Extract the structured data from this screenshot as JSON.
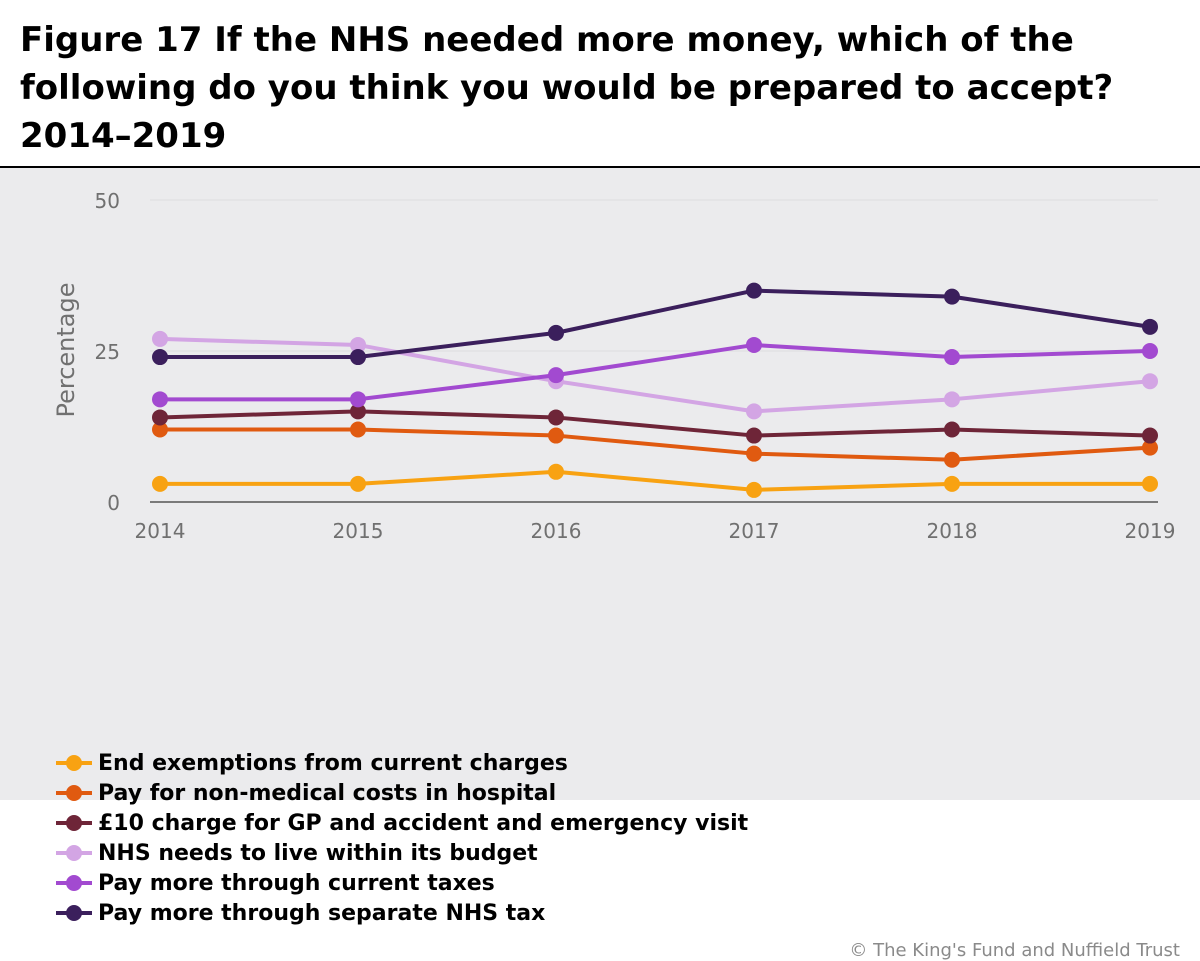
{
  "figure": {
    "title": "Figure 17 If the NHS needed more money, which of the following do you think you would be prepared to accept? 2014–2019",
    "credit": "© The King's Fund and Nuffield Trust"
  },
  "chart_data": {
    "type": "line",
    "title": "Figure 17 If the NHS needed more money, which of the following do you think you would be prepared to accept? 2014–2019",
    "xlabel": "",
    "ylabel": "Percentage",
    "x": [
      "2014",
      "2015",
      "2016",
      "2017",
      "2018",
      "2019"
    ],
    "ylim": [
      0,
      50
    ],
    "yticks": [
      "0",
      "25",
      "50"
    ],
    "grid": true,
    "legend_position": "bottom",
    "series": [
      {
        "name": "End exemptions from current charges",
        "color": "#f8a212",
        "values": [
          3,
          3,
          5,
          2,
          3,
          3
        ]
      },
      {
        "name": "Pay for non-medical costs in hospital",
        "color": "#e05a10",
        "values": [
          12,
          12,
          11,
          8,
          7,
          9
        ]
      },
      {
        "name": "£10 charge for GP and accident and emergency visit",
        "color": "#6e2538",
        "values": [
          14,
          15,
          14,
          11,
          12,
          11
        ]
      },
      {
        "name": "NHS needs to live within its budget",
        "color": "#d3a5e4",
        "values": [
          27,
          26,
          20,
          15,
          17,
          20
        ]
      },
      {
        "name": "Pay more through current taxes",
        "color": "#a24ad0",
        "values": [
          17,
          17,
          21,
          26,
          24,
          25
        ]
      },
      {
        "name": "Pay more through separate NHS tax",
        "color": "#3b1f5c",
        "values": [
          24,
          24,
          28,
          35,
          34,
          29
        ]
      }
    ]
  }
}
